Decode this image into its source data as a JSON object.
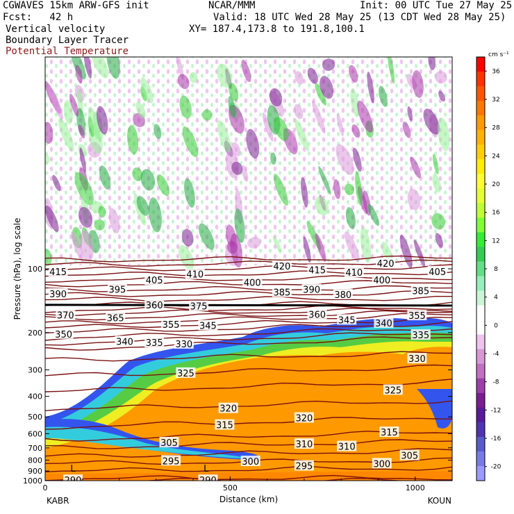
{
  "header": {
    "title_left": "CGWAVES 15km ARW-GFS init",
    "fcst": "Fcst:   42 h",
    "field1": "Vertical velocity",
    "field2": "Boundary Layer Tracer",
    "field3": "Potential Temperature",
    "center": "NCAR/MMM",
    "init": "Init: 00 UTC Tue 27 May 25",
    "valid": "Valid: 18 UTC Wed 28 May 25 (13 CDT Wed 28 May 25)",
    "xy": "XY= 187.4,173.8 to 191.8,100.1",
    "colors": {
      "field3": "#8b1a1a"
    }
  },
  "chart_data": {
    "type": "heatmap",
    "ylabel": "Pressure (hPa), log scale",
    "xlabel": "Distance (km)",
    "x_ticks": [
      0,
      500,
      1000
    ],
    "x_tick_labels": [
      "0",
      "500",
      "1000"
    ],
    "xlim": [
      0,
      1100
    ],
    "y_ticks": [
      100,
      200,
      300,
      400,
      500,
      600,
      700,
      800,
      900,
      1000
    ],
    "y_tick_labels": [
      "100",
      "200",
      "300",
      "400",
      "500",
      "600",
      "700",
      "800",
      "900",
      "1000"
    ],
    "ylim_hpa": [
      1000,
      10
    ],
    "y_scale": "log",
    "left_endpoint": "KABR",
    "right_endpoint": "KOUN",
    "colorbar": {
      "units": "cm s⁻¹",
      "tick_labels": [
        "36",
        "32",
        "28",
        "24",
        "20",
        "16",
        "12",
        "8",
        "4",
        "0",
        "-4",
        "-8",
        "-12",
        "-16",
        "-20"
      ],
      "colors": [
        "#ff0000",
        "#ff3300",
        "#ff5500",
        "#ff7700",
        "#ff9900",
        "#ffb300",
        "#ffd000",
        "#ffee00",
        "#ffff33",
        "#e6ff33",
        "#bfff33",
        "#80ff33",
        "#33ee33",
        "#33cc55",
        "#66dd88",
        "#99eebb",
        "#ccf5d8",
        "#ffffff",
        "#ffffff",
        "#eec4ee",
        "#d699d6",
        "#c070c0",
        "#9c40a8",
        "#7a1f8f",
        "#5a1a9a",
        "#5033b0",
        "#5a5acc",
        "#7a7ae6",
        "#9a9aff"
      ]
    },
    "theta_labels": [
      {
        "v": "415",
        "x": 35,
        "p": 103
      },
      {
        "v": "410",
        "x": 405,
        "p": 106
      },
      {
        "v": "420",
        "x": 640,
        "p": 97
      },
      {
        "v": "415",
        "x": 735,
        "p": 101
      },
      {
        "v": "410",
        "x": 835,
        "p": 104
      },
      {
        "v": "420",
        "x": 920,
        "p": 94
      },
      {
        "v": "405",
        "x": 1060,
        "p": 103
      },
      {
        "v": "390",
        "x": 35,
        "p": 131
      },
      {
        "v": "395",
        "x": 195,
        "p": 125
      },
      {
        "v": "405",
        "x": 295,
        "p": 113
      },
      {
        "v": "400",
        "x": 560,
        "p": 116
      },
      {
        "v": "385",
        "x": 640,
        "p": 129
      },
      {
        "v": "390",
        "x": 720,
        "p": 125
      },
      {
        "v": "400",
        "x": 910,
        "p": 113
      },
      {
        "v": "385",
        "x": 1015,
        "p": 127
      },
      {
        "v": "380",
        "x": 805,
        "p": 132
      },
      {
        "v": "375",
        "x": 415,
        "p": 150
      },
      {
        "v": "370",
        "x": 55,
        "p": 165
      },
      {
        "v": "365",
        "x": 190,
        "p": 170
      },
      {
        "v": "360",
        "x": 735,
        "p": 164
      },
      {
        "v": "355",
        "x": 340,
        "p": 183
      },
      {
        "v": "345",
        "x": 440,
        "p": 185
      },
      {
        "v": "345",
        "x": 815,
        "p": 174
      },
      {
        "v": "340",
        "x": 915,
        "p": 180
      },
      {
        "v": "355",
        "x": 1005,
        "p": 166
      },
      {
        "v": "350",
        "x": 50,
        "p": 203
      },
      {
        "v": "340",
        "x": 215,
        "p": 220
      },
      {
        "v": "335",
        "x": 295,
        "p": 223
      },
      {
        "v": "330",
        "x": 375,
        "p": 226
      },
      {
        "v": "335",
        "x": 1015,
        "p": 205
      },
      {
        "v": "330",
        "x": 1005,
        "p": 265
      },
      {
        "v": "325",
        "x": 380,
        "p": 310
      },
      {
        "v": "325",
        "x": 940,
        "p": 373
      },
      {
        "v": "320",
        "x": 495,
        "p": 455
      },
      {
        "v": "320",
        "x": 700,
        "p": 505
      },
      {
        "v": "315",
        "x": 485,
        "p": 545
      },
      {
        "v": "315",
        "x": 930,
        "p": 590
      },
      {
        "v": "310",
        "x": 700,
        "p": 670
      },
      {
        "v": "310",
        "x": 815,
        "p": 688
      },
      {
        "v": "305",
        "x": 335,
        "p": 660
      },
      {
        "v": "305",
        "x": 985,
        "p": 760
      },
      {
        "v": "300",
        "x": 555,
        "p": 810
      },
      {
        "v": "300",
        "x": 910,
        "p": 830
      },
      {
        "v": "295",
        "x": 340,
        "p": 805
      },
      {
        "v": "295",
        "x": 700,
        "p": 850
      },
      {
        "v": "290",
        "x": 440,
        "p": 993
      },
      {
        "v": "290",
        "x": 75,
        "p": 993
      }
    ],
    "tropopause_label": {
      "v": "360",
      "x": 295,
      "p": 148
    },
    "low_markers": [
      {
        "text": "L",
        "x": 75,
        "p": 905
      },
      {
        "text": "L",
        "x": 435,
        "p": 905
      }
    ],
    "theta_isentropes": [
      {
        "p0": 1000,
        "p1": 1000
      },
      {
        "p0": 975,
        "p1": 970
      },
      {
        "p0": 900,
        "p1": 870
      },
      {
        "p0": 830,
        "p1": 800
      },
      {
        "p0": 770,
        "p1": 720
      },
      {
        "p0": 700,
        "p1": 650
      },
      {
        "p0": 640,
        "p1": 590
      },
      {
        "p0": 560,
        "p1": 500
      },
      {
        "p0": 460,
        "p1": 420
      },
      {
        "p0": 380,
        "p1": 340
      },
      {
        "p0": 320,
        "p1": 290
      },
      {
        "p0": 270,
        "p1": 250
      },
      {
        "p0": 240,
        "p1": 210
      },
      {
        "p0": 225,
        "p1": 200
      },
      {
        "p0": 213,
        "p1": 190
      },
      {
        "p0": 200,
        "p1": 181
      },
      {
        "p0": 190,
        "p1": 173
      },
      {
        "p0": 181,
        "p1": 165
      },
      {
        "p0": 172,
        "p1": 160
      },
      {
        "p0": 163,
        "p1": 156
      },
      {
        "p0": 157,
        "p1": 152
      },
      {
        "p0": 148,
        "p1": 146
      },
      {
        "p0": 140,
        "p1": 138
      },
      {
        "p0": 133,
        "p1": 130
      },
      {
        "p0": 126,
        "p1": 123
      },
      {
        "p0": 119,
        "p1": 116
      },
      {
        "p0": 113,
        "p1": 110
      },
      {
        "p0": 107,
        "p1": 104
      },
      {
        "p0": 101,
        "p1": 98
      },
      {
        "p0": 96,
        "p1": 93
      },
      {
        "p0": 91,
        "p1": 89
      }
    ]
  }
}
